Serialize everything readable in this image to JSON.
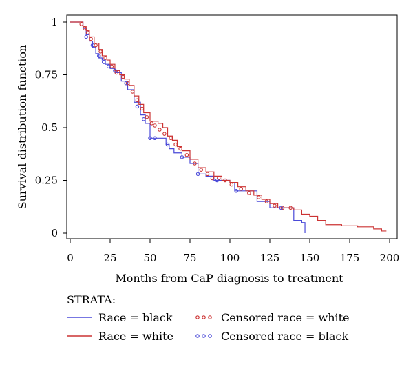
{
  "chart_data": {
    "type": "line",
    "subtype": "kaplan-meier step plot",
    "xlabel": "Months from CaP diagnosis to treatment",
    "ylabel": "Survival distribution function",
    "xlim": [
      0,
      200
    ],
    "ylim": [
      0,
      1
    ],
    "x_ticks": [
      "0",
      "25",
      "50",
      "75",
      "100",
      "125",
      "150",
      "175",
      "200"
    ],
    "y_ticks": [
      "0",
      "0.25",
      "0.5",
      "0.75",
      "1"
    ],
    "grid": false,
    "legend_title": "STRATA:",
    "legend_position": "bottom",
    "series": [
      {
        "name": "Race = black",
        "color": "#4a4ad8",
        "style": "step",
        "x": [
          0,
          6,
          8,
          10,
          12,
          14,
          16,
          18,
          20,
          22,
          25,
          28,
          32,
          36,
          40,
          44,
          47,
          50,
          55,
          58,
          60,
          62,
          65,
          70,
          75,
          80,
          85,
          90,
          95,
          100,
          103,
          110,
          117,
          125,
          128,
          130,
          140,
          145,
          147
        ],
        "y": [
          1,
          1,
          0.97,
          0.94,
          0.91,
          0.88,
          0.85,
          0.83,
          0.82,
          0.8,
          0.78,
          0.76,
          0.72,
          0.68,
          0.62,
          0.56,
          0.52,
          0.45,
          0.45,
          0.45,
          0.42,
          0.4,
          0.38,
          0.36,
          0.33,
          0.28,
          0.27,
          0.25,
          0.25,
          0.24,
          0.2,
          0.2,
          0.15,
          0.12,
          0.12,
          0.12,
          0.06,
          0.05,
          0.0
        ]
      },
      {
        "name": "Race = white",
        "color": "#cc3333",
        "style": "step",
        "x": [
          0,
          6,
          8,
          10,
          12,
          15,
          18,
          20,
          23,
          25,
          28,
          31,
          34,
          37,
          40,
          43,
          46,
          50,
          55,
          58,
          61,
          64,
          67,
          70,
          75,
          80,
          85,
          90,
          95,
          100,
          105,
          110,
          115,
          120,
          125,
          130,
          135,
          140,
          145,
          150,
          155,
          160,
          170,
          180,
          190,
          195,
          198
        ],
        "y": [
          1,
          1,
          0.98,
          0.96,
          0.93,
          0.9,
          0.87,
          0.84,
          0.82,
          0.8,
          0.77,
          0.75,
          0.73,
          0.7,
          0.65,
          0.61,
          0.57,
          0.53,
          0.52,
          0.5,
          0.46,
          0.44,
          0.41,
          0.39,
          0.35,
          0.31,
          0.29,
          0.27,
          0.25,
          0.24,
          0.22,
          0.2,
          0.18,
          0.16,
          0.14,
          0.12,
          0.12,
          0.11,
          0.09,
          0.08,
          0.06,
          0.04,
          0.035,
          0.03,
          0.02,
          0.01,
          0.01
        ]
      },
      {
        "name": "Censored race = white",
        "color": "#cc3333",
        "style": "circle-marker",
        "x": [
          7,
          9,
          11,
          13,
          16,
          19,
          22,
          26,
          29,
          33,
          36,
          39,
          42,
          45,
          48,
          51,
          53,
          56,
          59,
          63,
          66,
          69,
          73,
          78,
          82,
          86,
          89,
          93,
          97,
          101,
          107,
          112,
          118,
          123,
          128,
          133,
          138
        ],
        "y": [
          0.99,
          0.97,
          0.95,
          0.92,
          0.89,
          0.86,
          0.83,
          0.79,
          0.76,
          0.74,
          0.71,
          0.67,
          0.63,
          0.59,
          0.55,
          0.52,
          0.51,
          0.49,
          0.47,
          0.45,
          0.42,
          0.4,
          0.37,
          0.33,
          0.3,
          0.28,
          0.26,
          0.26,
          0.25,
          0.23,
          0.21,
          0.19,
          0.17,
          0.15,
          0.13,
          0.12,
          0.12
        ]
      },
      {
        "name": "Censored race = black",
        "color": "#4a4ad8",
        "style": "circle-marker",
        "x": [
          10,
          14,
          18,
          21,
          24,
          28,
          35,
          42,
          46,
          50,
          53,
          61,
          70,
          80,
          92,
          104,
          132
        ],
        "y": [
          0.93,
          0.89,
          0.84,
          0.81,
          0.79,
          0.77,
          0.71,
          0.6,
          0.54,
          0.45,
          0.45,
          0.42,
          0.36,
          0.28,
          0.25,
          0.2,
          0.12
        ]
      }
    ]
  }
}
